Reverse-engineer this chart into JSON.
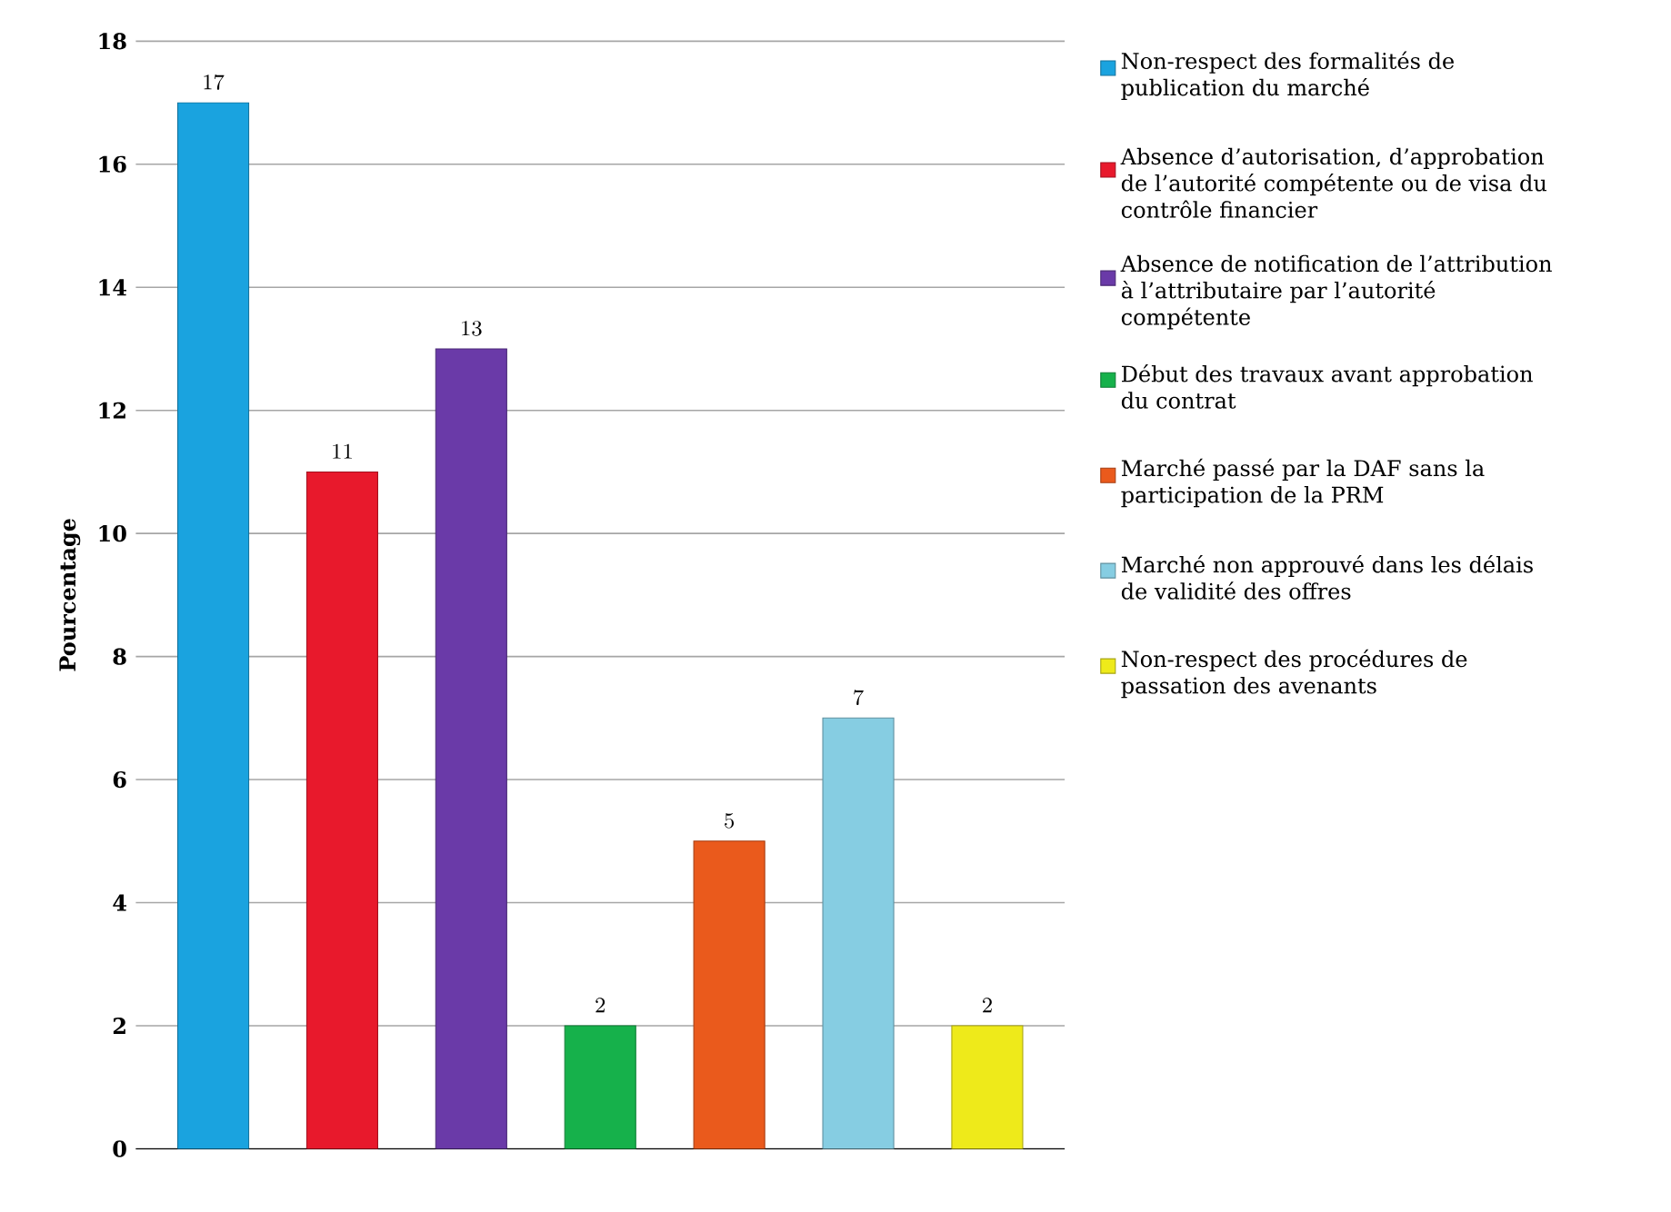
{
  "chart_data": {
    "type": "bar",
    "ylabel": "Pourcentage",
    "categories": [
      null,
      null,
      null,
      null,
      null,
      null,
      null
    ],
    "series": [
      {
        "name": "Non-respect des formalités de publication du marché",
        "color": "#1aa3df",
        "values": [
          17,
          null,
          null,
          null,
          null,
          null,
          null
        ]
      },
      {
        "name": "Absence d’autorisation, d’approbation de l’autorité compétente ou de visa du contrôle financier",
        "color": "#e8192c",
        "values": [
          null,
          11,
          null,
          null,
          null,
          null,
          null
        ]
      },
      {
        "name": "Absence de notification de l’attribution à l’attributaire par l’autorité compétente",
        "color": "#6a3aa8",
        "values": [
          null,
          null,
          13,
          null,
          null,
          null,
          null
        ]
      },
      {
        "name": "Début des travaux avant approbation du contrat",
        "color": "#16b14b",
        "values": [
          null,
          null,
          null,
          2,
          null,
          null,
          null
        ]
      },
      {
        "name": "Marché passé par la DAF sans la participation de la PRM",
        "color": "#ea5a1c",
        "values": [
          null,
          null,
          null,
          null,
          5,
          null,
          null
        ]
      },
      {
        "name": "Marché non approuvé dans les délais de validité des offres",
        "color": "#86cde2",
        "values": [
          null,
          null,
          null,
          null,
          null,
          7,
          null
        ]
      },
      {
        "name": "Non-respect des procédures de passation des avenants",
        "color": "#eeea1a",
        "values": [
          null,
          null,
          null,
          null,
          null,
          null,
          2
        ]
      }
    ],
    "ylim": [
      0,
      18
    ],
    "yticks": [
      0,
      2,
      4,
      6,
      8,
      10,
      12,
      14,
      16,
      18
    ],
    "grid": "y",
    "data_labels": true,
    "legend": "right"
  }
}
